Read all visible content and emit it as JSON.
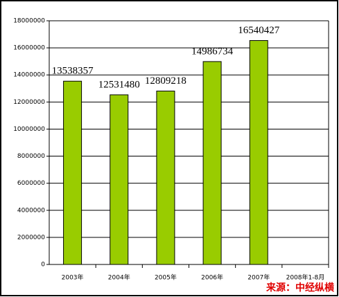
{
  "chart_data": {
    "type": "bar",
    "categories": [
      "2003年",
      "2004年",
      "2005年",
      "2006年",
      "2007年",
      "2008年1-8月"
    ],
    "values": [
      13538357,
      12531480,
      12809218,
      14986734,
      16540427,
      null
    ],
    "color": "#99cc00",
    "ylim": [
      0,
      18000000
    ],
    "yticks": [
      0,
      2000000,
      4000000,
      6000000,
      8000000,
      10000000,
      12000000,
      14000000,
      16000000,
      18000000
    ],
    "grid": true,
    "source": "来源：中经纵横"
  }
}
